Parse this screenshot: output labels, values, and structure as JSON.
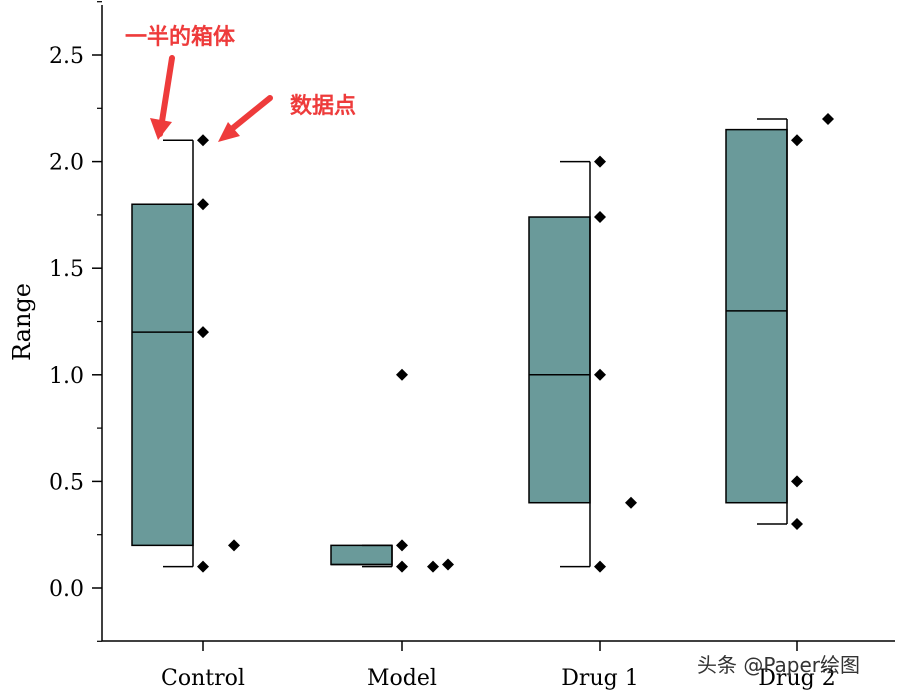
{
  "chart_data": {
    "type": "box",
    "ylabel": "Range",
    "ylim": [
      -0.25,
      2.75
    ],
    "yticks": [
      "0.0",
      "0.5",
      "1.0",
      "1.5",
      "2.0",
      "2.5"
    ],
    "categories": [
      "Control",
      "Model",
      "Drug 1",
      "Drug 2"
    ],
    "box_color": "#6a9a9a",
    "boxes": [
      {
        "category": "Control",
        "whisker_low": 0.1,
        "q1": 0.2,
        "median": 1.2,
        "q3": 1.8,
        "whisker_high": 2.1
      },
      {
        "category": "Model",
        "whisker_low": 0.1,
        "q1": 0.11,
        "median": 0.11,
        "q3": 0.2,
        "whisker_high": 0.2
      },
      {
        "category": "Drug 1",
        "whisker_low": 0.1,
        "q1": 0.4,
        "median": 1.0,
        "q3": 1.74,
        "whisker_high": 2.0
      },
      {
        "category": "Drug 2",
        "whisker_low": 0.3,
        "q1": 0.4,
        "median": 1.3,
        "q3": 2.15,
        "whisker_high": 2.2
      }
    ],
    "points": [
      {
        "category": "Control",
        "values": [
          2.1,
          1.8,
          1.2,
          0.1
        ],
        "outliers": [
          0.2
        ]
      },
      {
        "category": "Model",
        "values": [
          1.0,
          0.2,
          0.1
        ],
        "outliers": [
          0.1,
          0.11
        ]
      },
      {
        "category": "Drug 1",
        "values": [
          2.0,
          1.74,
          1.0,
          0.1
        ],
        "outliers": [
          0.4
        ]
      },
      {
        "category": "Drug 2",
        "values": [
          2.1,
          0.5,
          0.3
        ],
        "outliers": [
          2.2
        ]
      }
    ],
    "annotations": [
      {
        "text": "一半的箱体",
        "target": "whisker-cap"
      },
      {
        "text": "数据点",
        "target": "data-point"
      }
    ]
  },
  "watermark": "头条 @Paper绘图"
}
